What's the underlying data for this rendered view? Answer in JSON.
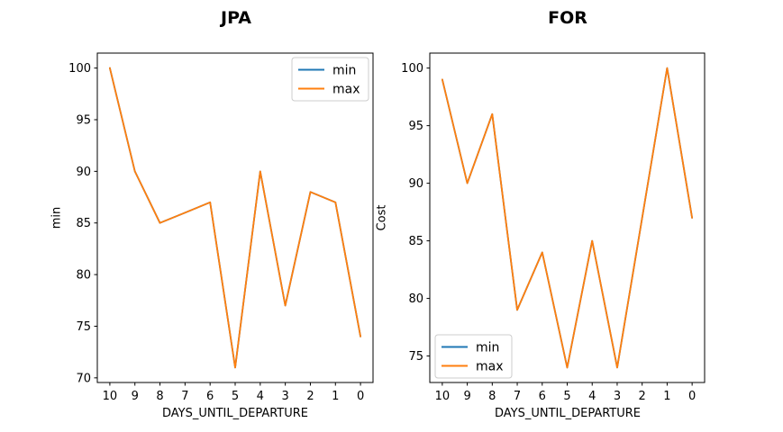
{
  "figure": {
    "background": "#ffffff",
    "text_color": "#000000",
    "axis_color": "#000000",
    "legend_border_color": "#cccccc"
  },
  "chart_data": [
    {
      "type": "line",
      "title": "JPA",
      "xlabel": "DAYS_UNTIL_DEPARTURE",
      "ylabel": "min",
      "x": [
        10,
        9,
        8,
        7,
        6,
        5,
        4,
        3,
        2,
        1,
        0
      ],
      "xlim": [
        10.5,
        -0.5
      ],
      "ylim": [
        69.55,
        101.45
      ],
      "xticks": [
        10,
        9,
        8,
        7,
        6,
        5,
        4,
        3,
        2,
        1,
        0
      ],
      "yticks": [
        70,
        75,
        80,
        85,
        90,
        95,
        100
      ],
      "grid": false,
      "legend": {
        "location": "upper-right",
        "entries": [
          "min",
          "max"
        ]
      },
      "series": [
        {
          "name": "min",
          "color": "#1f77b4",
          "values": [
            100,
            90,
            85,
            86,
            87,
            71,
            90,
            77,
            88,
            87,
            74
          ]
        },
        {
          "name": "max",
          "color": "#ff7f0e",
          "values": [
            100,
            90,
            85,
            86,
            87,
            71,
            90,
            77,
            88,
            87,
            74
          ]
        }
      ]
    },
    {
      "type": "line",
      "title": "FOR",
      "xlabel": "DAYS_UNTIL_DEPARTURE",
      "ylabel": "Cost",
      "x": [
        10,
        9,
        8,
        7,
        6,
        5,
        4,
        3,
        2,
        1,
        0
      ],
      "xlim": [
        10.5,
        -0.5
      ],
      "ylim": [
        72.7,
        101.3
      ],
      "xticks": [
        10,
        9,
        8,
        7,
        6,
        5,
        4,
        3,
        2,
        1,
        0
      ],
      "yticks": [
        75,
        80,
        85,
        90,
        95,
        100
      ],
      "grid": false,
      "legend": {
        "location": "lower-left",
        "entries": [
          "min",
          "max"
        ]
      },
      "series": [
        {
          "name": "min",
          "color": "#1f77b4",
          "values": [
            99,
            90,
            96,
            79,
            84,
            74,
            85,
            74,
            87,
            100,
            87
          ]
        },
        {
          "name": "max",
          "color": "#ff7f0e",
          "values": [
            99,
            90,
            96,
            79,
            84,
            74,
            85,
            74,
            87,
            100,
            87
          ]
        }
      ]
    }
  ]
}
